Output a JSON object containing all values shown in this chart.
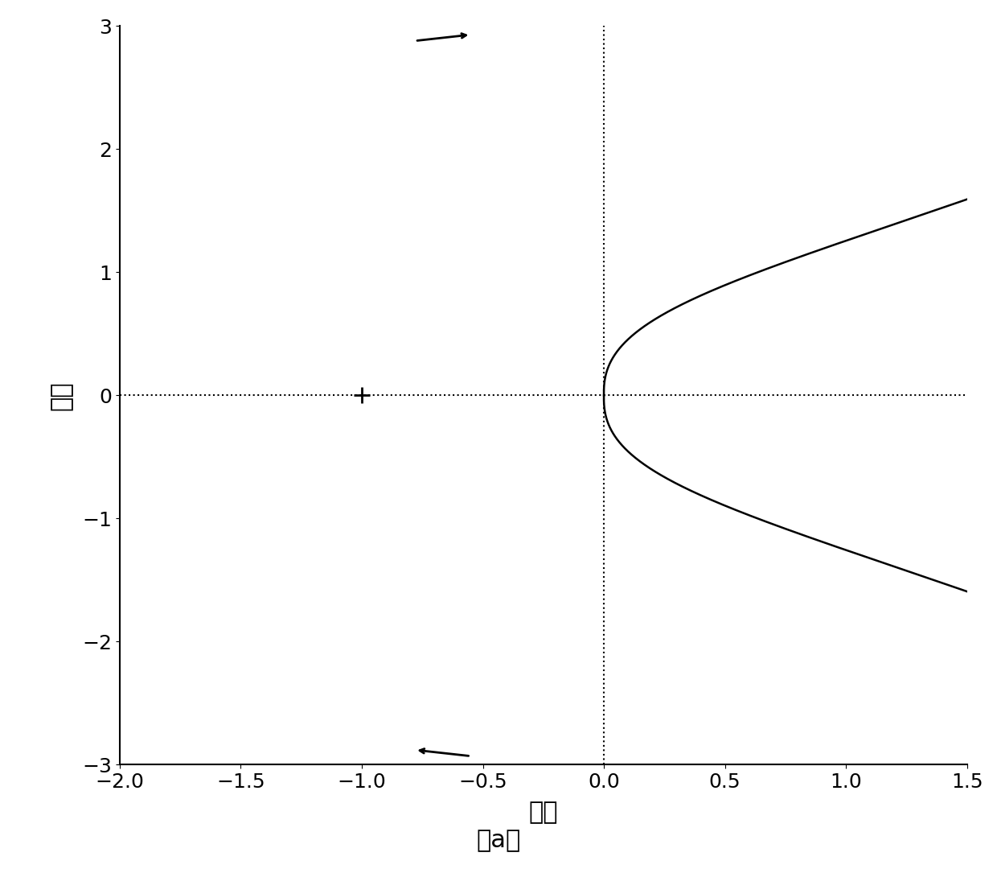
{
  "xlabel": "实轴",
  "ylabel": "虚轴",
  "xlim": [
    -2.0,
    1.5
  ],
  "ylim": [
    -3.0,
    3.0
  ],
  "xticks": [
    -2.0,
    -1.5,
    -1.0,
    -0.5,
    0.0,
    0.5,
    1.0,
    1.5
  ],
  "yticks": [
    -3,
    -2,
    -1,
    0,
    1,
    2,
    3
  ],
  "caption": "（a）",
  "bg_color": "#ffffff",
  "line_color": "#000000",
  "critical_point_x": -1.0,
  "critical_point_y": 0.0,
  "font_size_label": 22,
  "font_size_tick": 18,
  "font_size_caption": 22,
  "line_width": 1.8
}
